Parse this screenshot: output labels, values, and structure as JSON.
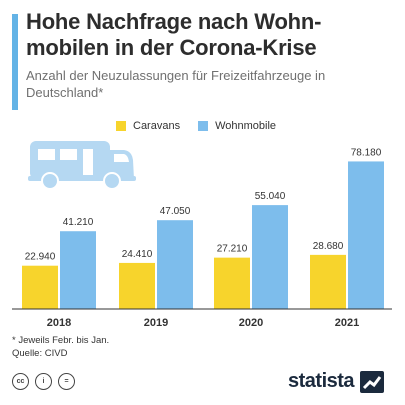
{
  "title": "Hohe Nachfrage nach Wohn-mobilen in der Corona-Krise",
  "subtitle": "Anzahl der Neuzulassungen für Freizeitfahrzeuge in Deutschland*",
  "colors": {
    "accent": "#63b3e6",
    "caravans": "#f7d42c",
    "wohnmobile": "#7dbdec",
    "illustration": "#b5d8f2"
  },
  "chart_data": {
    "type": "bar",
    "categories": [
      "2018",
      "2019",
      "2020",
      "2021"
    ],
    "series": [
      {
        "name": "Caravans",
        "values": [
          22940,
          24410,
          27210,
          28680
        ],
        "labels": [
          "22.940",
          "24.410",
          "27.210",
          "28.680"
        ]
      },
      {
        "name": "Wohnmobile",
        "values": [
          41210,
          47050,
          55040,
          78180
        ],
        "labels": [
          "41.210",
          "47.050",
          "55.040",
          "78.180"
        ]
      }
    ],
    "ylim": [
      0,
      80000
    ],
    "grid": false,
    "legend": "top"
  },
  "illustration_icon": "camper-van-icon",
  "footnote": "* Jeweils Febr. bis Jan.",
  "source": "Quelle: CIVD",
  "license_icons": [
    "cc-icon",
    "by-icon",
    "nd-icon"
  ],
  "license_glyphs": [
    "cc",
    "i",
    "="
  ],
  "brand": "statista"
}
